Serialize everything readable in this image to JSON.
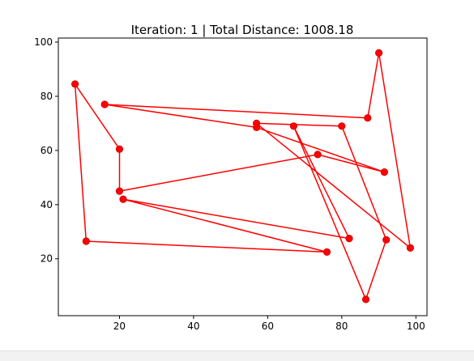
{
  "chart_data": {
    "type": "line",
    "title": "Iteration: 1 | Total Distance: 1008.18",
    "xlabel": "",
    "ylabel": "",
    "xlim": [
      3.5,
      103
    ],
    "ylim": [
      -1,
      101.5
    ],
    "xticks": [
      20,
      40,
      60,
      80,
      100
    ],
    "yticks": [
      20,
      40,
      60,
      80,
      100
    ],
    "grid": false,
    "series": [
      {
        "color": "#ff0000",
        "marker": "o",
        "closed": true,
        "x": [
          8,
          11,
          76,
          21,
          82,
          67,
          86.5,
          92,
          80,
          57,
          98.5,
          90,
          87,
          16,
          57,
          91.5,
          73.5,
          20,
          20
        ],
        "y": [
          84.5,
          26.5,
          22.5,
          42,
          27.5,
          69,
          5,
          27,
          69,
          70,
          24,
          96,
          72,
          77,
          68.5,
          52,
          58.5,
          45,
          60.5
        ]
      }
    ]
  }
}
